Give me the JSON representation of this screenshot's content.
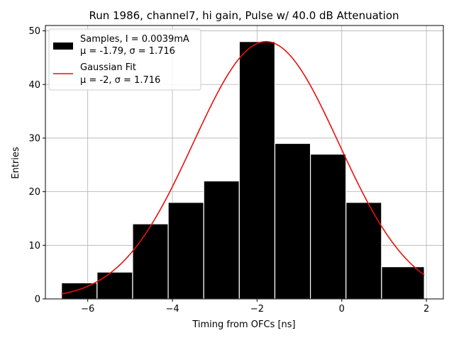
{
  "chart_data": {
    "type": "bar",
    "title": "Run 1986, channel7, hi gain, Pulse w/ 40.0 dB Attenuation",
    "xlabel": "Timing from OFCs [ns]",
    "ylabel": "Entries",
    "xlim": [
      -7.0,
      2.4
    ],
    "ylim": [
      0,
      51
    ],
    "xticks": [
      -6,
      -4,
      -2,
      0,
      2
    ],
    "xtick_labels": [
      "−6",
      "−4",
      "−2",
      "0",
      "2"
    ],
    "yticks": [
      0,
      10,
      20,
      30,
      40,
      50
    ],
    "ytick_labels": [
      "0",
      "10",
      "20",
      "30",
      "40",
      "50"
    ],
    "grid": true,
    "legend_position": "top-left",
    "histogram": {
      "bin_edges": [
        -6.62,
        -5.78,
        -4.94,
        -4.1,
        -3.26,
        -2.42,
        -1.58,
        -0.74,
        0.1,
        0.94,
        1.95
      ],
      "counts": [
        3,
        5,
        14,
        18,
        22,
        48,
        29,
        27,
        18,
        6
      ],
      "color": "#000000",
      "edge_color": "#ffffff"
    },
    "series": [
      {
        "kind": "histogram",
        "legend_line1": "Samples, I = 0.0039mA",
        "legend_line2": "μ = -1.79, σ = 1.716",
        "color": "#000000"
      },
      {
        "kind": "line",
        "legend_line1": "Gaussian Fit",
        "legend_line2": "μ = -2, σ = 1.716",
        "color": "#e8100c",
        "mu": -1.79,
        "sigma": 1.716,
        "amplitude": 48,
        "x_range": [
          -6.62,
          1.95
        ]
      }
    ]
  }
}
